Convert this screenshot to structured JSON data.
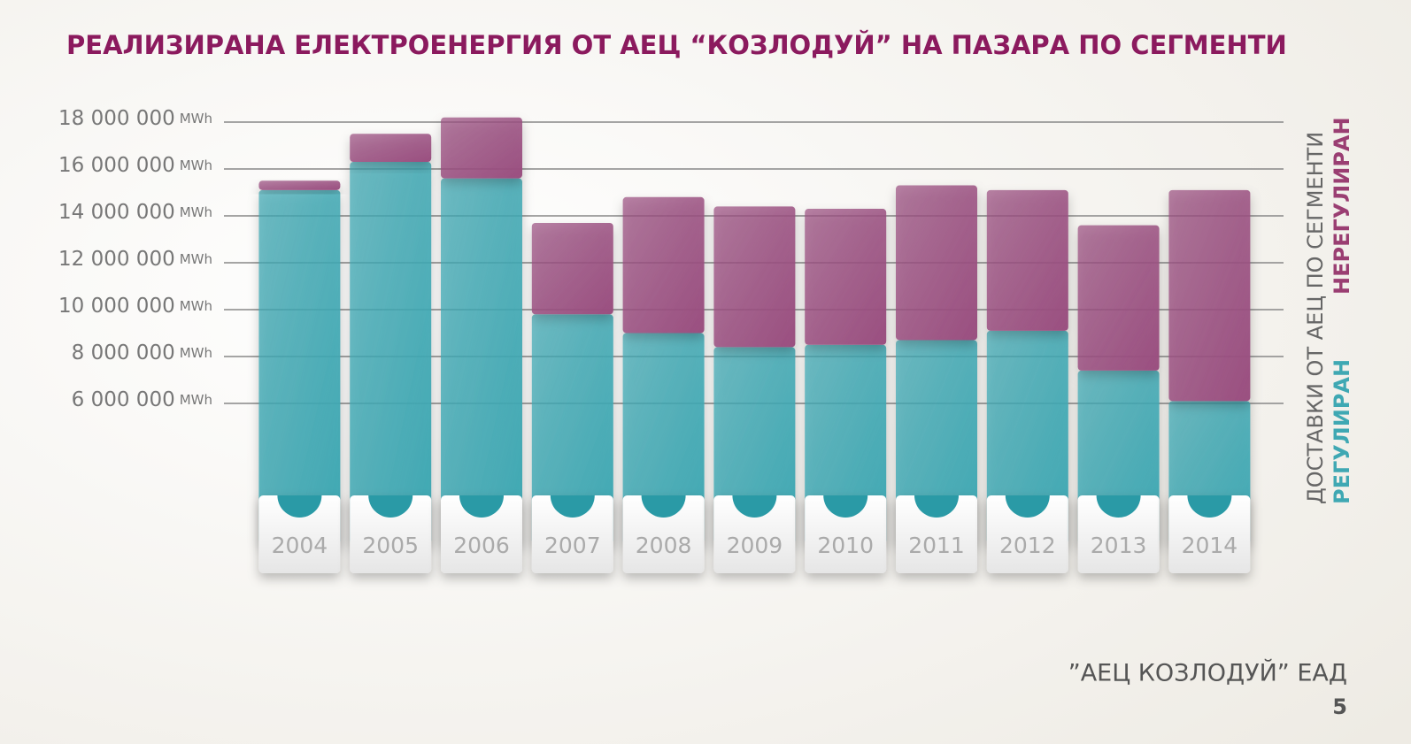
{
  "chart_data": {
    "type": "stacked_bar",
    "title": "РЕАЛИЗИРАНА ЕЛЕКТРОЕНЕРГИЯ ОТ АЕЦ “КОЗЛОДУЙ” НА ПАЗАРА ПО СЕГМЕНТИ",
    "legend_title": "ДОСТАВКИ ОТ АЕЦ ПО СЕГМЕНТИ",
    "y_unit": "MWh",
    "categories": [
      "2004",
      "2005",
      "2006",
      "2007",
      "2008",
      "2009",
      "2010",
      "2011",
      "2012",
      "2013",
      "2014"
    ],
    "series": [
      {
        "name": "РЕГУЛИРАН",
        "color": "#3fa8b3",
        "values": [
          15100000,
          16300000,
          15600000,
          9800000,
          9000000,
          8400000,
          8500000,
          8700000,
          9100000,
          7400000,
          6100000
        ]
      },
      {
        "name": "НЕРЕГУЛИРАН",
        "color": "#9a4f80",
        "values": [
          400000,
          1200000,
          2600000,
          3900000,
          5800000,
          6000000,
          5800000,
          6600000,
          6000000,
          6200000,
          9000000
        ]
      }
    ],
    "ylim": [
      0,
      18500000
    ],
    "yticks": [
      {
        "value": 6000000,
        "label": "6 000 000"
      },
      {
        "value": 8000000,
        "label": "8 000 000"
      },
      {
        "value": 10000000,
        "label": "10 000 000"
      },
      {
        "value": 12000000,
        "label": "12 000 000"
      },
      {
        "value": 14000000,
        "label": "14 000 000"
      },
      {
        "value": 16000000,
        "label": "16 000 000"
      },
      {
        "value": 18000000,
        "label": "18 000 000"
      }
    ],
    "grid": true,
    "footer": "”АЕЦ КОЗЛОДУЙ” ЕАД",
    "page_number": "5"
  }
}
